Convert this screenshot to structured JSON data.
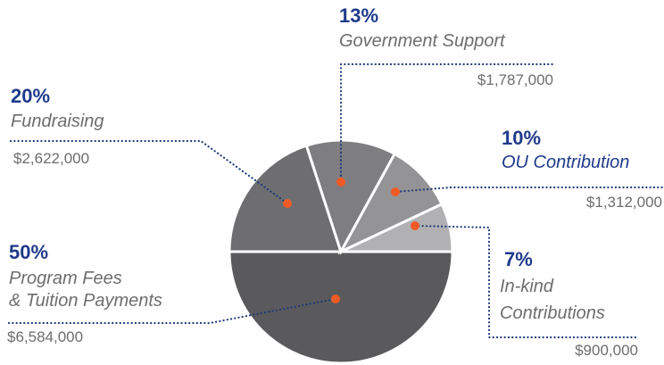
{
  "chart_data": {
    "type": "pie",
    "categories": [
      "Program Fees\n& Tuition Payments",
      "Fundraising",
      "Government Support",
      "OU Contribution",
      "In-kind\nContributions"
    ],
    "values": [
      50,
      20,
      13,
      10,
      7
    ],
    "value_labels": [
      "50%",
      "20%",
      "13%",
      "10%",
      "7%"
    ],
    "amounts": [
      "$6,584,000",
      "$2,622,000",
      "$1,787,000",
      "$1,312,000",
      "$900,000"
    ],
    "colors": [
      "#5a5a5c",
      "#6e6e70",
      "#7e7e80",
      "#949496",
      "#b1b1b3"
    ],
    "name_colors": [
      "#6d6d6f",
      "#6d6d6f",
      "#6d6d6f",
      "#1f3a8a",
      "#6d6d6f"
    ],
    "marker_color": "#f15a24"
  }
}
